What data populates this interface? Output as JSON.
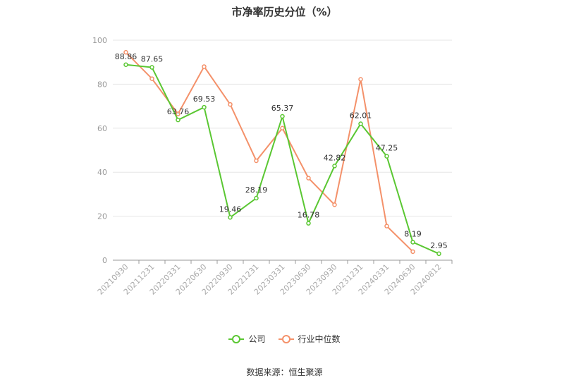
{
  "chart_data": {
    "type": "line",
    "title": "市净率历史分位（%）",
    "categories": [
      "20210930",
      "20211231",
      "20220331",
      "20220630",
      "20220930",
      "20221231",
      "20230331",
      "20230630",
      "20230930",
      "20231231",
      "20240331",
      "20240630",
      "20240812"
    ],
    "ylim": [
      0,
      100
    ],
    "yticks": [
      0,
      20,
      40,
      60,
      80,
      100
    ],
    "grid": true,
    "legend_position": "bottom",
    "series": [
      {
        "name": "公司",
        "color": "#5ac732",
        "values": [
          88.86,
          87.65,
          63.76,
          69.53,
          19.46,
          28.19,
          65.37,
          16.78,
          42.82,
          62.01,
          47.25,
          8.19,
          2.95
        ],
        "labels": [
          "88.86",
          "87.65",
          "63.76",
          "69.53",
          "19.46",
          "28.19",
          "65.37",
          "16.78",
          "42.82",
          "62.01",
          "47.25",
          "8.19",
          "2.95"
        ]
      },
      {
        "name": "行业中位数",
        "color": "#f4916a",
        "values": [
          94.5,
          82.5,
          66.5,
          88.0,
          70.8,
          45.2,
          60.0,
          37.3,
          25.2,
          82.2,
          15.5,
          3.9,
          null
        ]
      }
    ]
  },
  "legend": {
    "company": "公司",
    "industry": "行业中位数"
  },
  "source": "数据来源：恒生聚源"
}
